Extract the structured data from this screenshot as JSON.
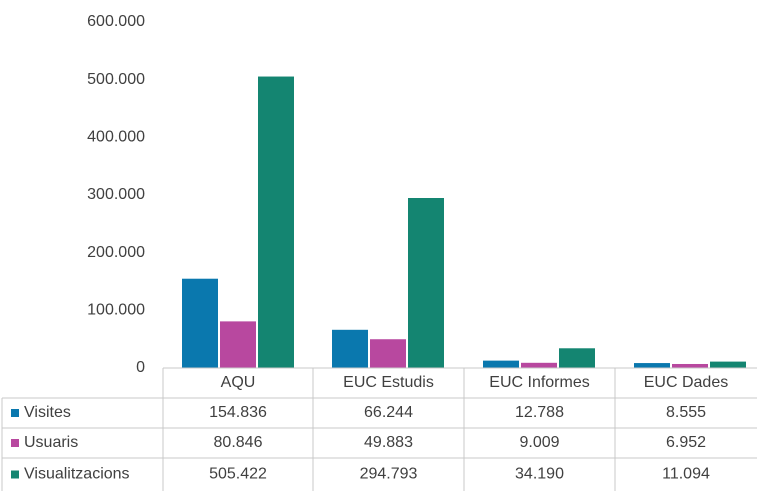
{
  "chart_data": {
    "type": "bar",
    "categories": [
      "AQU",
      "EUC Estudis",
      "EUC Informes",
      "EUC Dades"
    ],
    "series": [
      {
        "name": "Visites",
        "color": "#0a78ae",
        "values": [
          154836,
          66244,
          12788,
          8555
        ],
        "value_labels": [
          "154.836",
          "66.244",
          "12.788",
          "8.555"
        ]
      },
      {
        "name": "Usuaris",
        "color": "#b8489f",
        "values": [
          80846,
          49883,
          9009,
          6952
        ],
        "value_labels": [
          "80.846",
          "49.883",
          "9.009",
          "6.952"
        ]
      },
      {
        "name": "Visualitzacions",
        "color": "#148571",
        "values": [
          505422,
          294793,
          34190,
          11094
        ],
        "value_labels": [
          "505.422",
          "294.793",
          "34.190",
          "11.094"
        ]
      }
    ],
    "ylim": [
      0,
      600000
    ],
    "yticks": [
      0,
      {
        "value": 100000,
        "label": "100.000"
      },
      {
        "value": 200000,
        "label": "200.000"
      },
      {
        "value": 300000,
        "label": "300.000"
      },
      {
        "value": 400000,
        "label": "400.000"
      },
      {
        "value": 500000,
        "label": "500.000"
      },
      {
        "value": 600000,
        "label": "600.000"
      }
    ],
    "grid": false
  }
}
